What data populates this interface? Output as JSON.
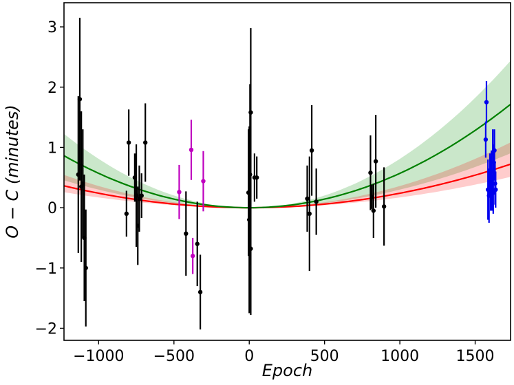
{
  "chart_data": {
    "type": "scatter",
    "xlabel": "Epoch",
    "ylabel": "O − C (minutes)",
    "xlim": [
      -1230,
      1735
    ],
    "ylim": [
      -2.2,
      3.4
    ],
    "x_ticks": [
      -1000,
      -500,
      0,
      500,
      1000,
      1500
    ],
    "x_tick_labels": [
      "−1000",
      "−500",
      "0",
      "500",
      "1000",
      "1500"
    ],
    "y_ticks": [
      -2,
      -1,
      0,
      1,
      2,
      3
    ],
    "y_tick_labels": [
      "−2",
      "−1",
      "0",
      "1",
      "2",
      "3"
    ],
    "grid": false,
    "curves": [
      {
        "color": "#008000",
        "band_color": "#2ca02c",
        "band_opacity": 0.25,
        "coef": 5.7e-07,
        "band_low_coef": 3e-07,
        "band_high_coef": 8.1e-07
      },
      {
        "color": "#ff0000",
        "band_color": "#ff0000",
        "band_opacity": 0.2,
        "coef": 2.4e-07,
        "band_low_coef": 1.7e-07,
        "band_high_coef": 3.6e-07
      }
    ],
    "series": [
      {
        "color": "#000000",
        "points": [
          {
            "x": -1135,
            "y": 0.55,
            "err": 1.3
          },
          {
            "x": -1125,
            "y": 1.8,
            "err": 1.35
          },
          {
            "x": -1115,
            "y": 0.35,
            "err": 1.25
          },
          {
            "x": -1105,
            "y": 0.4,
            "err": 0.9
          },
          {
            "x": -1095,
            "y": -0.5,
            "err": 1.05
          },
          {
            "x": -1085,
            "y": -1.0,
            "err": 0.97
          },
          {
            "x": -815,
            "y": -0.1,
            "err": 0.38
          },
          {
            "x": -800,
            "y": 1.08,
            "err": 0.55
          },
          {
            "x": -760,
            "y": 0.5,
            "err": 0.4
          },
          {
            "x": -750,
            "y": 0.2,
            "err": 0.85
          },
          {
            "x": -740,
            "y": -0.3,
            "err": 0.65
          },
          {
            "x": -730,
            "y": 0.15,
            "err": 0.55
          },
          {
            "x": -715,
            "y": 0.2,
            "err": 0.37
          },
          {
            "x": -690,
            "y": 1.08,
            "err": 0.65
          },
          {
            "x": -420,
            "y": -0.43,
            "err": 0.7
          },
          {
            "x": -345,
            "y": -0.6,
            "err": 0.7
          },
          {
            "x": -325,
            "y": -1.4,
            "err": 0.62
          },
          {
            "x": -5,
            "y": 0.25,
            "err": 1.05
          },
          {
            "x": 0,
            "y": -0.2,
            "err": 1.55
          },
          {
            "x": 5,
            "y": 0.55,
            "err": 1.5
          },
          {
            "x": 10,
            "y": 1.58,
            "err": 1.4
          },
          {
            "x": 10,
            "y": -0.68,
            "err": 1.1
          },
          {
            "x": 35,
            "y": 0.5,
            "err": 0.4
          },
          {
            "x": 50,
            "y": 0.5,
            "err": 0.35
          },
          {
            "x": 385,
            "y": 0.15,
            "err": 0.55
          },
          {
            "x": 400,
            "y": -0.1,
            "err": 0.95
          },
          {
            "x": 415,
            "y": 0.95,
            "err": 0.75
          },
          {
            "x": 445,
            "y": 0.1,
            "err": 0.55
          },
          {
            "x": 805,
            "y": 0.58,
            "err": 0.62
          },
          {
            "x": 815,
            "y": 0.18,
            "err": 0.2
          },
          {
            "x": 825,
            "y": -0.05,
            "err": 0.45
          },
          {
            "x": 840,
            "y": 0.77,
            "err": 0.77
          },
          {
            "x": 895,
            "y": 0.02,
            "err": 0.65
          }
        ]
      },
      {
        "color": "#bf00bf",
        "points": [
          {
            "x": -465,
            "y": 0.26,
            "err": 0.45
          },
          {
            "x": -385,
            "y": 0.96,
            "err": 0.5
          },
          {
            "x": -375,
            "y": -0.8,
            "err": 0.3
          },
          {
            "x": -305,
            "y": 0.44,
            "err": 0.5
          }
        ]
      },
      {
        "color": "#0000ee",
        "points": [
          {
            "x": 1575,
            "y": 1.75,
            "err": 0.35
          },
          {
            "x": 1570,
            "y": 1.13,
            "err": 0.3
          },
          {
            "x": 1585,
            "y": 0.3,
            "err": 0.5
          },
          {
            "x": 1592,
            "y": 0.2,
            "err": 0.45
          },
          {
            "x": 1598,
            "y": 0.55,
            "err": 0.35
          },
          {
            "x": 1603,
            "y": 0.4,
            "err": 0.45
          },
          {
            "x": 1608,
            "y": 0.6,
            "err": 0.35
          },
          {
            "x": 1612,
            "y": 0.25,
            "err": 0.3
          },
          {
            "x": 1617,
            "y": 0.9,
            "err": 0.4
          },
          {
            "x": 1620,
            "y": 0.25,
            "err": 0.35
          },
          {
            "x": 1624,
            "y": 0.75,
            "err": 0.3
          },
          {
            "x": 1628,
            "y": 0.95,
            "err": 0.35
          },
          {
            "x": 1632,
            "y": 0.4,
            "err": 0.35
          },
          {
            "x": 1636,
            "y": 0.3,
            "err": 0.3
          }
        ]
      }
    ]
  }
}
